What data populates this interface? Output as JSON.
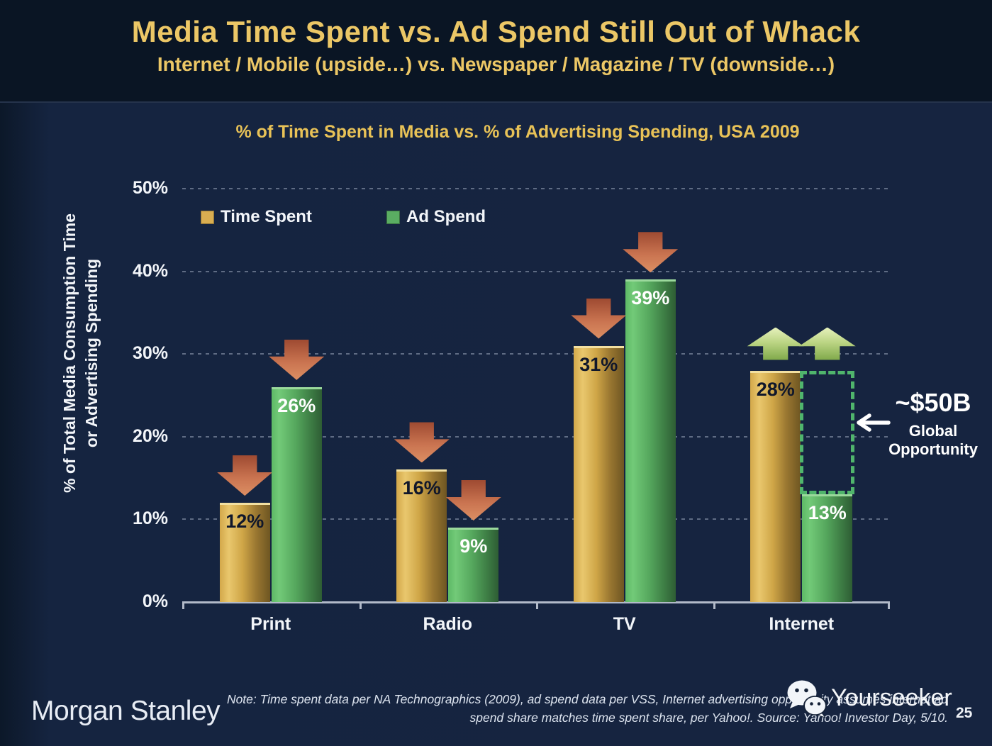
{
  "header": {
    "title": "Media Time Spent vs. Ad Spend Still Out of Whack",
    "subtitle": "Internet / Mobile (upside…) vs. Newspaper / Magazine / TV (downside…)"
  },
  "chart": {
    "title": "% of Time Spent in Media vs. % of Advertising Spending, USA 2009",
    "y_axis_title_line1": "% of Total Media Consumption Time",
    "y_axis_title_line2": "or Advertising Spending",
    "legend": [
      {
        "label": "Time Spent",
        "color": "#d9ae51"
      },
      {
        "label": "Ad Spend",
        "color": "#5aad62"
      }
    ]
  },
  "chart_data": {
    "type": "bar",
    "title": "% of Time Spent in Media vs. % of Advertising Spending, USA 2009",
    "categories": [
      "Print",
      "Radio",
      "TV",
      "Internet"
    ],
    "series": [
      {
        "name": "Time Spent",
        "color": "#d9ae51",
        "values": [
          12,
          16,
          31,
          28
        ],
        "trend": [
          "down",
          "down",
          "down",
          "up"
        ]
      },
      {
        "name": "Ad Spend",
        "color": "#5aad62",
        "values": [
          26,
          9,
          39,
          13
        ],
        "trend": [
          "down",
          "down",
          "down",
          "up"
        ]
      }
    ],
    "value_label_format": "{v}%",
    "ylabel": "% of Total Media Consumption Time or Advertising Spending",
    "ylim": [
      0,
      50
    ],
    "yticks": [
      "0%",
      "10%",
      "20%",
      "30%",
      "40%",
      "50%"
    ],
    "grid": true,
    "legend_position": "top-left",
    "trend_down_color": "#c97350",
    "trend_up_color": "#bcd584"
  },
  "annotation": {
    "value": "~$50B",
    "line1": "Global",
    "line2": "Opportunity",
    "category": "Internet",
    "from": 28,
    "to": 13,
    "box_color": "#50b56c"
  },
  "footer": {
    "logo": "Morgan Stanley",
    "note_line1": "Note: Time spent data per NA Technographics (2009), ad spend data per VSS, Internet advertising opportunity assumes internet ad",
    "note_line2": "spend share matches time spent share, per Yahoo!. Source: Yahoo! Investor Day, 5/10.",
    "watermark": "Yourseeker",
    "page": "25"
  }
}
